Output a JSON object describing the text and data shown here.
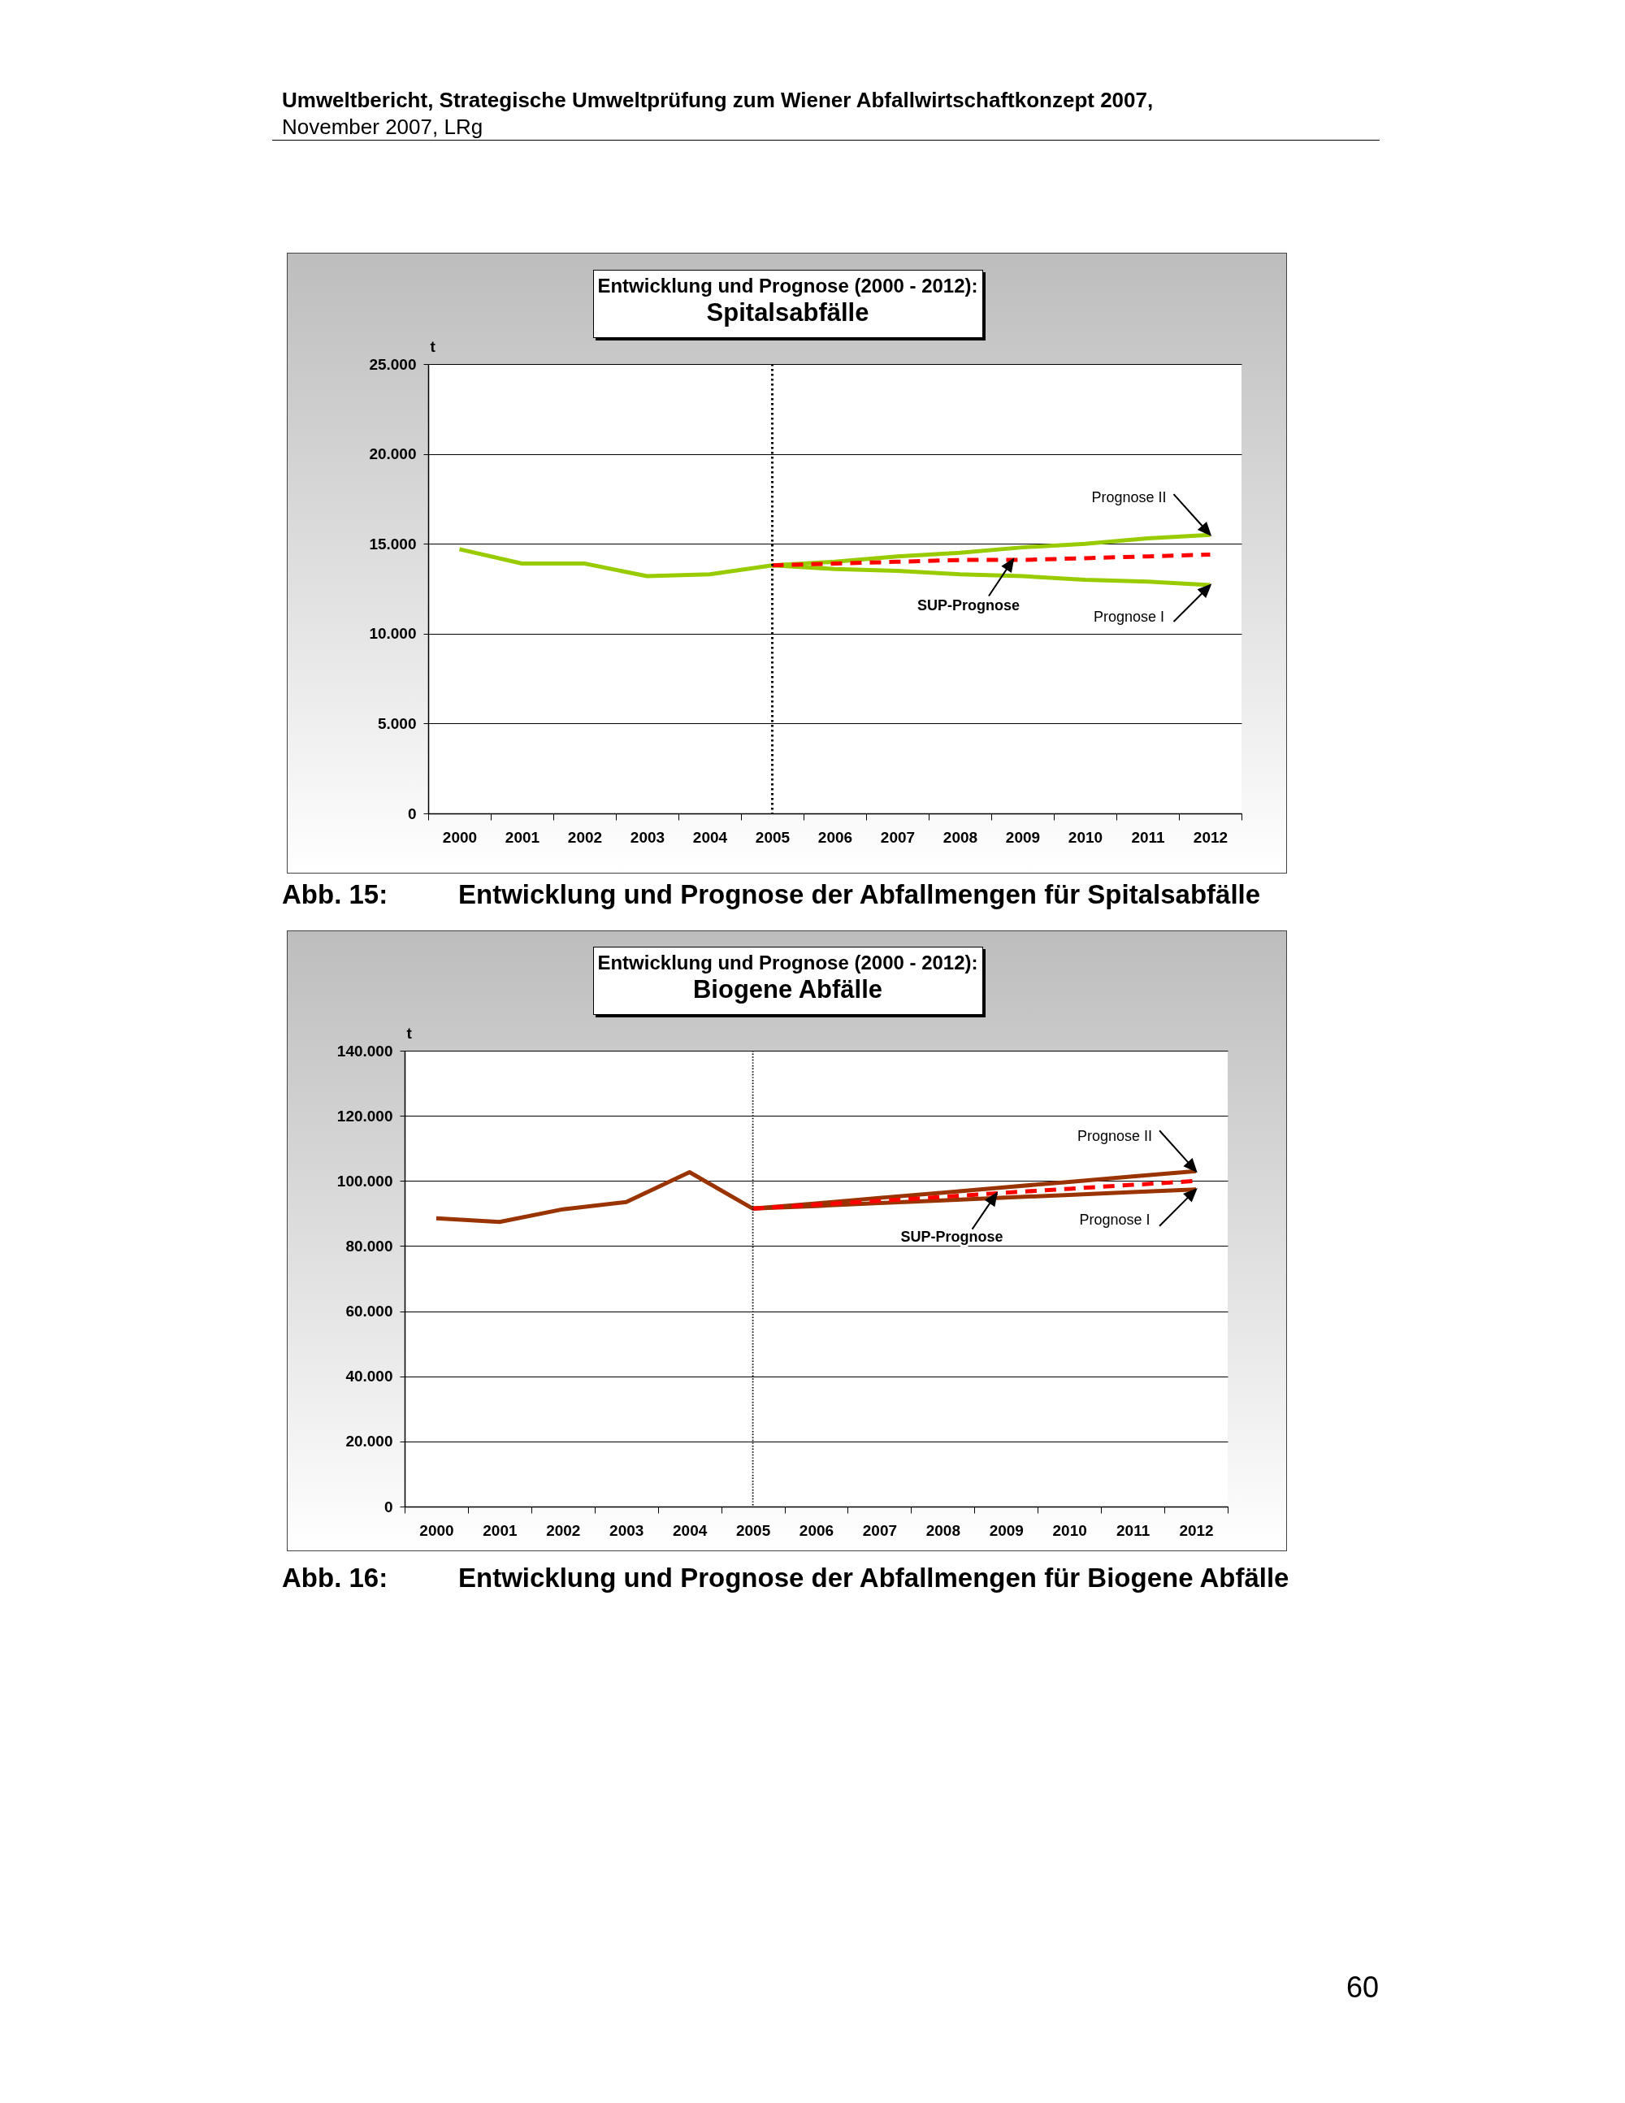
{
  "chart_data": [
    {
      "type": "line",
      "title": "Entwicklung und Prognose (2000 - 2012):",
      "subtitle": "Spitalsabfälle",
      "ylabel": "t",
      "categories": [
        "2000",
        "2001",
        "2002",
        "2003",
        "2004",
        "2005",
        "2006",
        "2007",
        "2008",
        "2009",
        "2010",
        "2011",
        "2012"
      ],
      "series": [
        {
          "name": "Prognose I",
          "color": "#99cc00",
          "values": [
            14700,
            13900,
            13900,
            13200,
            13300,
            13800,
            13600,
            13500,
            13300,
            13200,
            13000,
            12900,
            12700
          ]
        },
        {
          "name": "Prognose II",
          "color": "#99cc00",
          "values": [
            null,
            null,
            null,
            null,
            null,
            13800,
            14000,
            14300,
            14500,
            14800,
            15000,
            15300,
            15500
          ]
        },
        {
          "name": "SUP-Prognose",
          "color": "#ff0000",
          "line_style": "dashed",
          "values": [
            null,
            null,
            null,
            null,
            null,
            13800,
            13900,
            14000,
            14100,
            14100,
            14200,
            14300,
            14400
          ]
        }
      ],
      "ylim": [
        0,
        25000
      ],
      "yticks": [
        0,
        {
          "value": 5000,
          "label": "5.000"
        },
        {
          "value": 10000,
          "label": "10.000"
        },
        {
          "value": 15000,
          "label": "15.000"
        },
        {
          "value": 20000,
          "label": "20.000"
        },
        {
          "value": 25000,
          "label": "25.000"
        }
      ],
      "grid": "y",
      "ref_lines": [
        {
          "axis": "x",
          "value": "2005",
          "color": "#000000",
          "line_style": "dotted"
        }
      ],
      "annotations": [
        "Umweltbericht, Strategische Umweltprüfung zum Wiener Abfallwirtschaftkonzept 2007,",
        "November 2007, LRg",
        "Abb. 15:",
        "Entwicklung und Prognose der Abfallmengen für Spitalsabfälle"
      ]
    },
    {
      "type": "line",
      "title": "Entwicklung und Prognose (2000 - 2012):",
      "subtitle": "Biogene Abfälle",
      "ylabel": "t",
      "categories": [
        "2000",
        "2001",
        "2002",
        "2003",
        "2004",
        "2005",
        "2006",
        "2007",
        "2008",
        "2009",
        "2010",
        "2011",
        "2012"
      ],
      "series": [
        {
          "name": "Prognose I",
          "color": "#993300",
          "values": [
            88500,
            87400,
            91300,
            93500,
            102700,
            91500,
            92300,
            93200,
            94000,
            94900,
            95700,
            96600,
            97400
          ]
        },
        {
          "name": "Prognose II",
          "color": "#993300",
          "values": [
            null,
            null,
            null,
            null,
            null,
            91500,
            93100,
            94800,
            96400,
            98100,
            99700,
            101400,
            103000
          ]
        },
        {
          "name": "SUP-Prognose",
          "color": "#ff0000",
          "line_style": "dashed",
          "values": [
            null,
            null,
            null,
            null,
            null,
            91500,
            92700,
            93900,
            95100,
            96400,
            97600,
            98800,
            100000
          ]
        }
      ],
      "ylim": [
        0,
        140000
      ],
      "yticks": [
        0,
        {
          "value": 20000,
          "label": "20.000"
        },
        {
          "value": 40000,
          "label": "40.000"
        },
        {
          "value": 60000,
          "label": "60.000"
        },
        {
          "value": 80000,
          "label": "80.000"
        },
        {
          "value": 100000,
          "label": "100.000"
        },
        {
          "value": 120000,
          "label": "120.000"
        },
        {
          "value": 140000,
          "label": "140.000"
        }
      ],
      "grid": "y",
      "ref_lines": [
        {
          "axis": "x",
          "value": "2005",
          "color": "#000000",
          "line_style": "dotted"
        }
      ],
      "annotations": [
        "Abb. 16:",
        "Entwicklung und Prognose der Abfallmengen für Biogene Abfälle",
        "60"
      ]
    }
  ]
}
